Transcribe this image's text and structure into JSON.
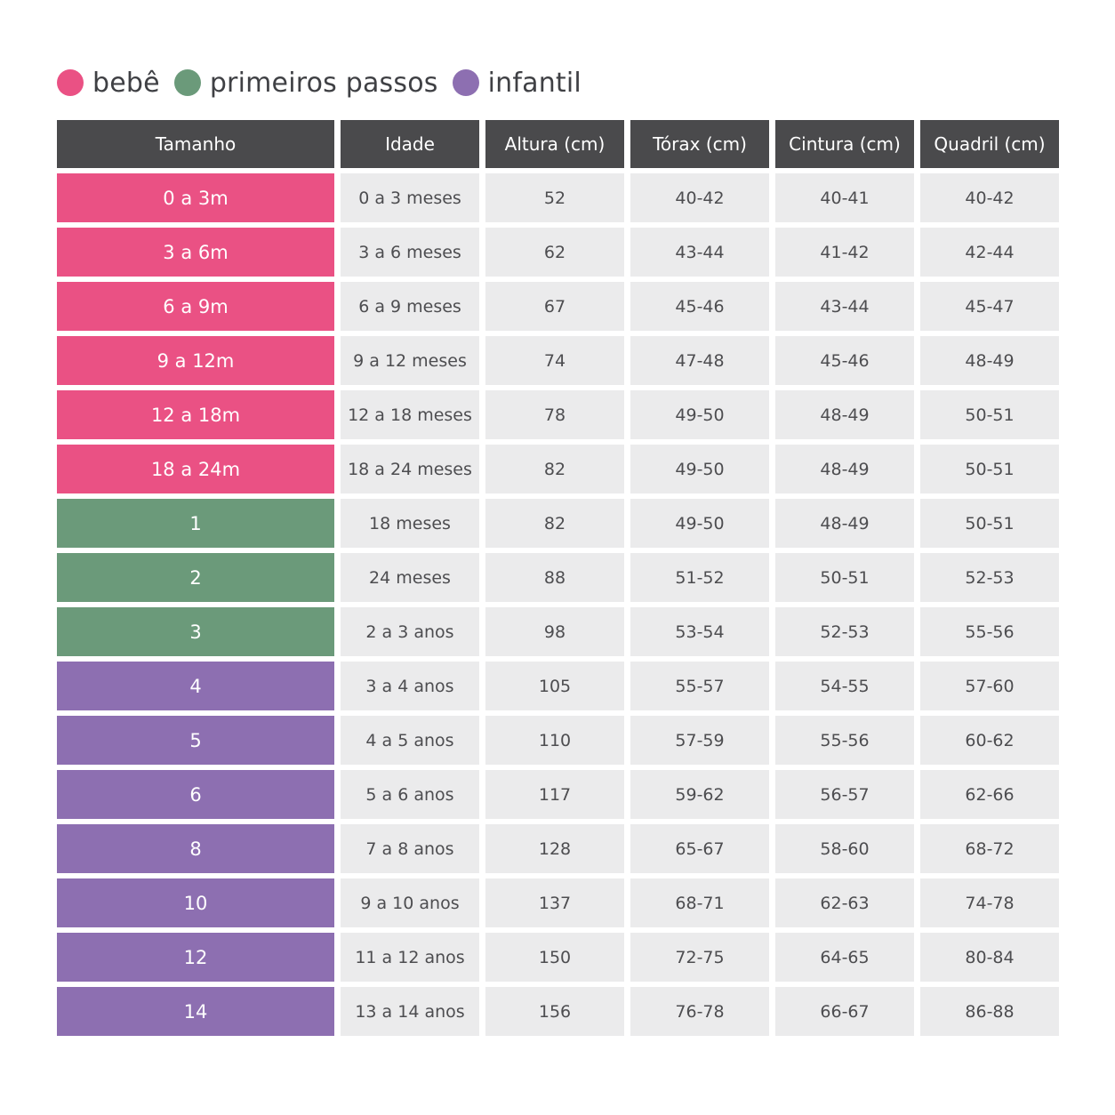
{
  "legend": [
    {
      "label": "bebê",
      "color": "#ea5184"
    },
    {
      "label": "primeiros passos",
      "color": "#6b9a7a"
    },
    {
      "label": "infantil",
      "color": "#8d6fb1"
    }
  ],
  "table": {
    "headers": [
      "Tamanho",
      "Idade",
      "Altura (cm)",
      "Tórax (cm)",
      "Cintura (cm)",
      "Quadril (cm)"
    ],
    "rows": [
      {
        "category": "bebe",
        "cells": [
          "0 a 3m",
          "0 a 3 meses",
          "52",
          "40-42",
          "40-41",
          "40-42"
        ]
      },
      {
        "category": "bebe",
        "cells": [
          "3 a 6m",
          "3 a 6 meses",
          "62",
          "43-44",
          "41-42",
          "42-44"
        ]
      },
      {
        "category": "bebe",
        "cells": [
          "6 a 9m",
          "6 a 9 meses",
          "67",
          "45-46",
          "43-44",
          "45-47"
        ]
      },
      {
        "category": "bebe",
        "cells": [
          "9 a 12m",
          "9 a 12 meses",
          "74",
          "47-48",
          "45-46",
          "48-49"
        ]
      },
      {
        "category": "bebe",
        "cells": [
          "12 a 18m",
          "12 a 18 meses",
          "78",
          "49-50",
          "48-49",
          "50-51"
        ]
      },
      {
        "category": "bebe",
        "cells": [
          "18 a 24m",
          "18 a 24 meses",
          "82",
          "49-50",
          "48-49",
          "50-51"
        ]
      },
      {
        "category": "primeiros",
        "cells": [
          "1",
          "18 meses",
          "82",
          "49-50",
          "48-49",
          "50-51"
        ]
      },
      {
        "category": "primeiros",
        "cells": [
          "2",
          "24 meses",
          "88",
          "51-52",
          "50-51",
          "52-53"
        ]
      },
      {
        "category": "primeiros",
        "cells": [
          "3",
          "2 a 3 anos",
          "98",
          "53-54",
          "52-53",
          "55-56"
        ]
      },
      {
        "category": "infantil",
        "cells": [
          "4",
          "3 a 4 anos",
          "105",
          "55-57",
          "54-55",
          "57-60"
        ]
      },
      {
        "category": "infantil",
        "cells": [
          "5",
          "4 a 5 anos",
          "110",
          "57-59",
          "55-56",
          "60-62"
        ]
      },
      {
        "category": "infantil",
        "cells": [
          "6",
          "5 a 6 anos",
          "117",
          "59-62",
          "56-57",
          "62-66"
        ]
      },
      {
        "category": "infantil",
        "cells": [
          "8",
          "7 a 8 anos",
          "128",
          "65-67",
          "58-60",
          "68-72"
        ]
      },
      {
        "category": "infantil",
        "cells": [
          "10",
          "9 a 10 anos",
          "137",
          "68-71",
          "62-63",
          "74-78"
        ]
      },
      {
        "category": "infantil",
        "cells": [
          "12",
          "11 a 12 anos",
          "150",
          "72-75",
          "64-65",
          "80-84"
        ]
      },
      {
        "category": "infantil",
        "cells": [
          "14",
          "13 a 14 anos",
          "156",
          "76-78",
          "66-67",
          "86-88"
        ]
      }
    ]
  }
}
